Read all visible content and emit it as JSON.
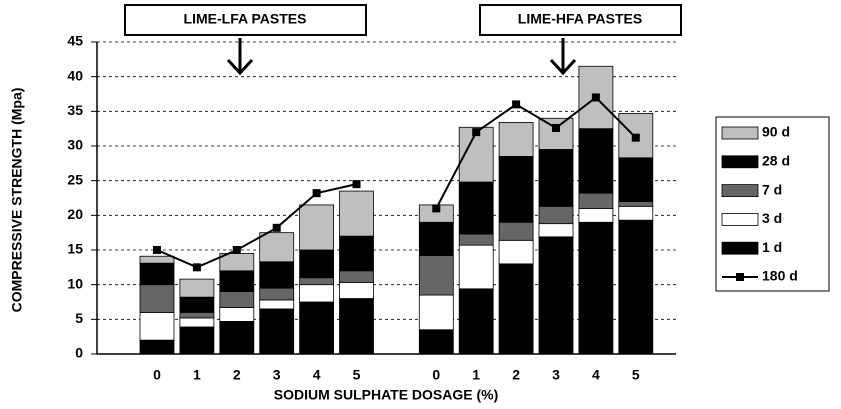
{
  "chart_data": {
    "type": "bar",
    "stacked": true,
    "xlabel": "SODIUM SULPHATE DOSAGE (%)",
    "ylabel": "COMPRESSIVE STRENGTH (Mpa)",
    "annotations": [
      {
        "text": "LIME-LFA PASTES"
      },
      {
        "text": "LIME-HFA PASTES"
      }
    ],
    "categories": [
      "0",
      "1",
      "2",
      "3",
      "4",
      "5",
      null,
      "0",
      "1",
      "2",
      "3",
      "4",
      "5"
    ],
    "series": [
      {
        "name": "90 d",
        "color": "#bfbfbf",
        "values": [
          1.0,
          2.6,
          2.5,
          4.2,
          6.5,
          6.5,
          null,
          2.5,
          7.9,
          4.9,
          4.5,
          9.0,
          6.4
        ]
      },
      {
        "name": "28 d",
        "color": "#000000",
        "values": [
          3.1,
          2.2,
          3.0,
          3.8,
          4.0,
          5.0,
          null,
          4.8,
          7.5,
          9.5,
          8.2,
          9.3,
          6.3
        ]
      },
      {
        "name": "7 d",
        "color": "#666666",
        "values": [
          4.0,
          0.8,
          2.3,
          1.7,
          1.0,
          1.7,
          null,
          5.7,
          1.6,
          2.6,
          2.5,
          2.2,
          0.7
        ]
      },
      {
        "name": "3 d",
        "color": "#ffffff",
        "values": [
          4.0,
          1.3,
          2.0,
          1.3,
          2.5,
          2.3,
          null,
          5.0,
          6.3,
          3.4,
          1.9,
          2.0,
          2.0
        ]
      },
      {
        "name": "1 d",
        "color": "#000000",
        "values": [
          2.0,
          3.9,
          4.7,
          6.5,
          7.5,
          8.0,
          null,
          3.5,
          9.4,
          13.0,
          16.9,
          19.0,
          19.3
        ]
      },
      {
        "name": "180 d",
        "type": "line",
        "color": "#000000",
        "values": [
          15,
          12.5,
          15,
          18.2,
          23.2,
          24.5,
          null,
          21,
          32,
          36,
          32.6,
          37,
          31.2
        ]
      }
    ],
    "ylim": [
      0,
      45
    ],
    "yticks": [
      0,
      5,
      10,
      15,
      20,
      25,
      30,
      35,
      40,
      45
    ],
    "grid": true
  }
}
